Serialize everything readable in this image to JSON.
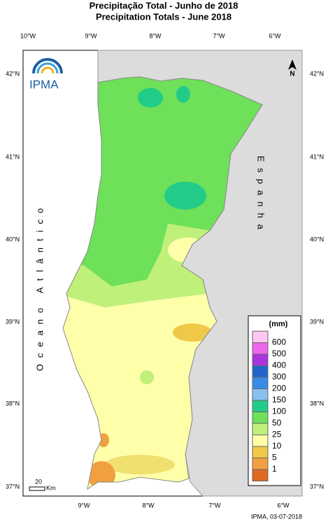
{
  "title": {
    "line1": "Precipitação Total  -  Junho de 2018",
    "line2": "Precipitation Totals - June 2018"
  },
  "logo": "IPMA",
  "axes": {
    "top": [
      "10°W",
      "9°W",
      "8°W",
      "7°W",
      "6°W"
    ],
    "bottom": [
      "9°W",
      "8°W",
      "7°W",
      "6°W"
    ],
    "left": [
      "42°N",
      "41°N",
      "40°N",
      "39°N",
      "38°N",
      "37°N"
    ],
    "right": [
      "42°N",
      "41°N",
      "40°N",
      "39°N",
      "38°N",
      "37°N"
    ]
  },
  "labels": {
    "ocean": "Oceano Atlântico",
    "country": "Espanha"
  },
  "legend": {
    "unit": "(mm)",
    "items": [
      600,
      500,
      400,
      300,
      200,
      150,
      100,
      50,
      25,
      10,
      5,
      1
    ]
  },
  "scale": {
    "value": 20,
    "unit": "Km"
  },
  "footer": "IPMA, 03-07-2018"
}
